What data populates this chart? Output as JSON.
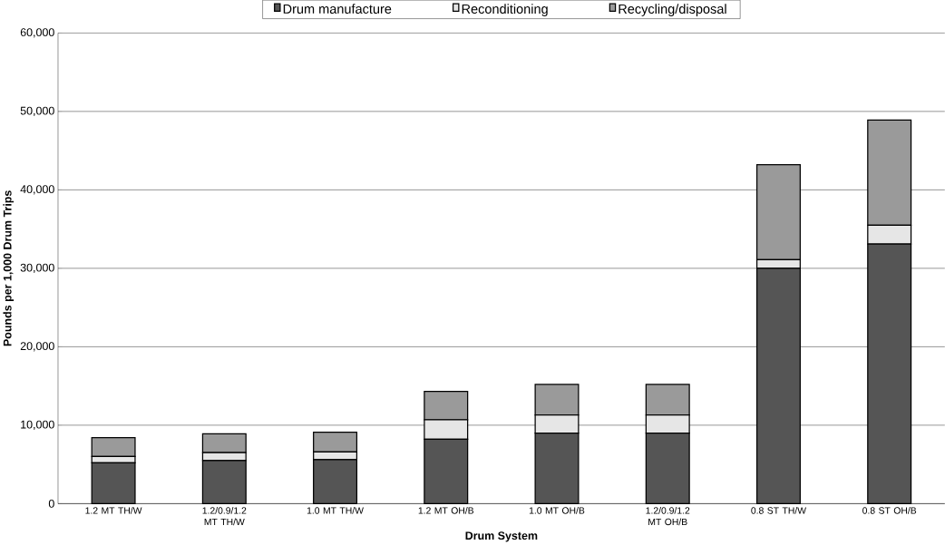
{
  "chart_data": {
    "type": "bar",
    "stacked": true,
    "xlabel": "Drum System",
    "ylabel": "Pounds per 1,000 Drum Trips",
    "categories": [
      "1.2 MT TH/W",
      "1.2/0.9/1.2 MT TH/W",
      "1.0 MT TH/W",
      "1.2 MT OH/B",
      "1.0 MT OH/B",
      "1.2/0.9/1.2 MT OH/B",
      "0.8 ST TH/W",
      "0.8 ST OH/B"
    ],
    "series": [
      {
        "name": "Drum manufacture",
        "color": "#555555",
        "values": [
          5200,
          5500,
          5600,
          8200,
          9000,
          9000,
          30000,
          33100
        ]
      },
      {
        "name": "Reconditioning",
        "color": "#e6e6e6",
        "values": [
          800,
          1000,
          1000,
          2500,
          2300,
          2300,
          1100,
          2400
        ]
      },
      {
        "name": "Recycling/disposal",
        "color": "#9a9a9a",
        "values": [
          2400,
          2400,
          2500,
          3600,
          3900,
          3900,
          12100,
          13400
        ]
      }
    ],
    "ylim": [
      0,
      60000
    ],
    "yticks": [
      {
        "value": 0,
        "label": "0"
      },
      {
        "value": 10000,
        "label": "10,000"
      },
      {
        "value": 20000,
        "label": "20,000"
      },
      {
        "value": 30000,
        "label": "30,000"
      },
      {
        "value": 40000,
        "label": "40,000"
      },
      {
        "value": 50000,
        "label": "50,000"
      },
      {
        "value": 60000,
        "label": "60,000"
      }
    ],
    "grid": "y",
    "legend": "top"
  }
}
